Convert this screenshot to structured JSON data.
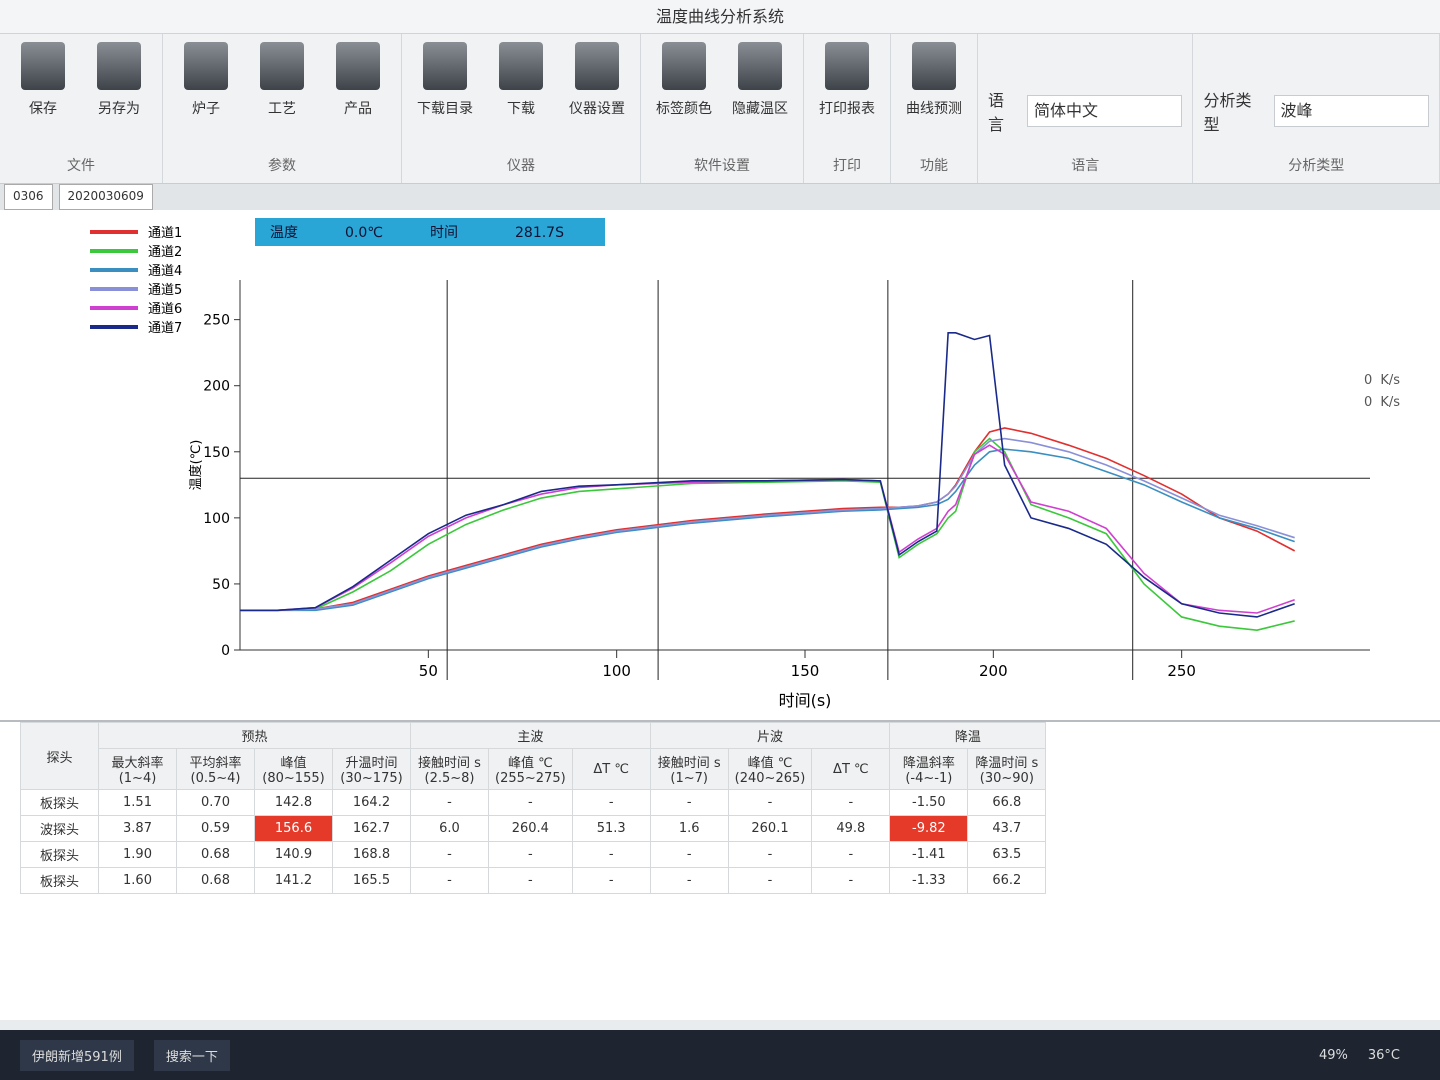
{
  "window": {
    "title": "温度曲线分析系统"
  },
  "ribbon": [
    {
      "group": "文件",
      "buttons": [
        "保存",
        "另存为"
      ]
    },
    {
      "group": "参数",
      "buttons": [
        "炉子",
        "工艺",
        "产品"
      ]
    },
    {
      "group": "仪器",
      "buttons": [
        "下载目录",
        "下载",
        "仪器设置"
      ]
    },
    {
      "group": "软件设置",
      "buttons": [
        "标签颜色",
        "隐藏温区"
      ]
    },
    {
      "group": "打印",
      "buttons": [
        "打印报表"
      ]
    },
    {
      "group": "功能",
      "buttons": [
        "曲线预测"
      ]
    },
    {
      "group": "语言",
      "label": "语言",
      "select": "简体中文"
    },
    {
      "group": "分析类型",
      "label": "分析类型",
      "select": "波峰"
    }
  ],
  "tabs": [
    "0306",
    "2020030609"
  ],
  "chart": {
    "type": "line",
    "x_label": "时间(s)",
    "y_label": "温度(℃)",
    "cursor": {
      "temp_label": "温度",
      "temp": "0.0℃",
      "time_label": "时间",
      "time": "281.7S"
    },
    "xlim": [
      0,
      300
    ],
    "ylim": [
      0,
      280
    ],
    "xticks": [
      50,
      100,
      150,
      200,
      250
    ],
    "yticks": [
      0,
      50,
      100,
      150,
      200,
      250
    ],
    "markers": {
      "x": [
        55,
        111,
        172,
        237
      ],
      "y": 130
    },
    "x": [
      0,
      10,
      20,
      30,
      40,
      50,
      60,
      70,
      80,
      90,
      100,
      120,
      140,
      160,
      170,
      175,
      180,
      185,
      188,
      190,
      195,
      199,
      203,
      210,
      220,
      230,
      240,
      250,
      260,
      270,
      280
    ],
    "series": [
      {
        "name": "通道1",
        "color": "#e03030",
        "values": [
          30,
          30,
          31,
          36,
          46,
          56,
          64,
          72,
          80,
          86,
          91,
          98,
          103,
          107,
          108,
          108,
          109,
          112,
          118,
          125,
          150,
          165,
          168,
          164,
          155,
          145,
          132,
          118,
          100,
          90,
          75
        ]
      },
      {
        "name": "通道2",
        "color": "#3cc83c",
        "values": [
          30,
          30,
          31,
          44,
          60,
          80,
          95,
          106,
          115,
          120,
          122,
          126,
          127,
          128,
          127,
          70,
          80,
          88,
          100,
          105,
          150,
          160,
          150,
          110,
          100,
          88,
          50,
          25,
          18,
          15,
          22
        ]
      },
      {
        "name": "通道4",
        "color": "#3a8fc0",
        "values": [
          30,
          30,
          30,
          34,
          44,
          54,
          62,
          70,
          78,
          84,
          89,
          96,
          101,
          105,
          106,
          107,
          108,
          110,
          114,
          120,
          140,
          150,
          152,
          150,
          145,
          135,
          125,
          112,
          100,
          92,
          82
        ]
      },
      {
        "name": "通道5",
        "color": "#8a90d8",
        "values": [
          30,
          30,
          31,
          35,
          45,
          55,
          63,
          71,
          79,
          85,
          90,
          97,
          102,
          106,
          107,
          108,
          109,
          112,
          118,
          124,
          148,
          158,
          160,
          157,
          150,
          140,
          128,
          115,
          102,
          94,
          85
        ]
      },
      {
        "name": "通道6",
        "color": "#d040d0",
        "values": [
          30,
          30,
          32,
          47,
          66,
          86,
          100,
          110,
          118,
          123,
          125,
          127,
          128,
          129,
          128,
          74,
          84,
          92,
          105,
          110,
          148,
          155,
          148,
          112,
          105,
          92,
          58,
          35,
          30,
          28,
          38
        ]
      },
      {
        "name": "通道7",
        "color": "#1a2a8a",
        "values": [
          30,
          30,
          32,
          48,
          68,
          88,
          102,
          110,
          120,
          124,
          125,
          128,
          128,
          129,
          128,
          72,
          82,
          90,
          240,
          240,
          235,
          238,
          140,
          100,
          92,
          80,
          55,
          35,
          28,
          25,
          35
        ]
      }
    ]
  },
  "rate": {
    "up": "0",
    "down": "0",
    "unit": "K/s"
  },
  "table": {
    "probe_header": "探头",
    "groups": [
      {
        "name": "预热",
        "columns": [
          {
            "name": "最大斜率",
            "range": "(1~4)"
          },
          {
            "name": "平均斜率",
            "range": "(0.5~4)"
          },
          {
            "name": "峰值",
            "range": "(80~155)"
          },
          {
            "name": "升温时间",
            "range": "(30~175)"
          }
        ]
      },
      {
        "name": "主波",
        "columns": [
          {
            "name": "接触时间 s",
            "range": "(2.5~8)"
          },
          {
            "name": "峰值 ℃",
            "range": "(255~275)"
          },
          {
            "name": "ΔT ℃",
            "range": ""
          }
        ]
      },
      {
        "name": "片波",
        "columns": [
          {
            "name": "接触时间 s",
            "range": "(1~7)"
          },
          {
            "name": "峰值 ℃",
            "range": "(240~265)"
          },
          {
            "name": "ΔT ℃",
            "range": ""
          }
        ]
      },
      {
        "name": "降温",
        "columns": [
          {
            "name": "降温斜率",
            "range": "(-4~-1)"
          },
          {
            "name": "降温时间 s",
            "range": "(30~90)"
          }
        ]
      }
    ],
    "rows": [
      {
        "probe": "板探头",
        "cells": [
          "1.51",
          "0.70",
          "142.8",
          "164.2",
          "-",
          "-",
          "-",
          "-",
          "-",
          "-",
          "-1.50",
          "66.8"
        ],
        "alert": []
      },
      {
        "probe": "波探头",
        "cells": [
          "3.87",
          "0.59",
          "156.6",
          "162.7",
          "6.0",
          "260.4",
          "51.3",
          "1.6",
          "260.1",
          "49.8",
          "-9.82",
          "43.7"
        ],
        "alert": [
          2,
          10
        ]
      },
      {
        "probe": "板探头",
        "cells": [
          "1.90",
          "0.68",
          "140.9",
          "168.8",
          "-",
          "-",
          "-",
          "-",
          "-",
          "-",
          "-1.41",
          "63.5"
        ],
        "alert": []
      },
      {
        "probe": "板探头",
        "cells": [
          "1.60",
          "0.68",
          "141.2",
          "165.5",
          "-",
          "-",
          "-",
          "-",
          "-",
          "-",
          "-1.33",
          "66.2"
        ],
        "alert": []
      }
    ]
  },
  "taskbar": {
    "news": "伊朗新增591例",
    "search": "搜索一下",
    "battery": "49%",
    "temperature": "36°C"
  }
}
